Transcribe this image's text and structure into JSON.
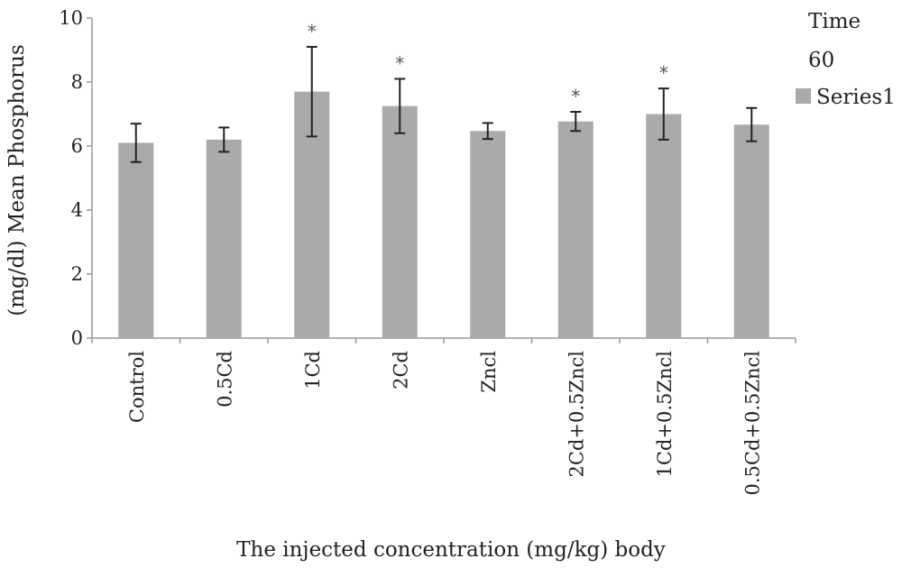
{
  "chart_data": {
    "type": "bar",
    "categories": [
      "Control",
      "0.5Cd",
      "1Cd",
      "2Cd",
      "Zncl",
      "2Cd+0.5Zncl",
      "1Cd+0.5Zncl",
      "0.5Cd+0.5Zncl"
    ],
    "series": [
      {
        "name": "Series1",
        "values": [
          6.1,
          6.2,
          7.7,
          7.25,
          6.47,
          6.77,
          7.0,
          6.67
        ],
        "error": [
          0.6,
          0.38,
          1.4,
          0.85,
          0.25,
          0.3,
          0.8,
          0.52
        ],
        "significant": [
          false,
          false,
          true,
          true,
          false,
          true,
          true,
          false
        ],
        "color": "#aaaaaa"
      }
    ],
    "significance_marker": "*",
    "ylim": [
      0,
      10
    ],
    "yticks": [
      "0",
      "2",
      "4",
      "6",
      "8",
      "10"
    ],
    "ylabel": "(mg/dl) Mean Phosphorus",
    "xlabel": "The injected  concentration (mg/kg) body",
    "legend": {
      "title": "Time",
      "subtitle": "60",
      "placement": "top-right"
    },
    "grid": false
  }
}
